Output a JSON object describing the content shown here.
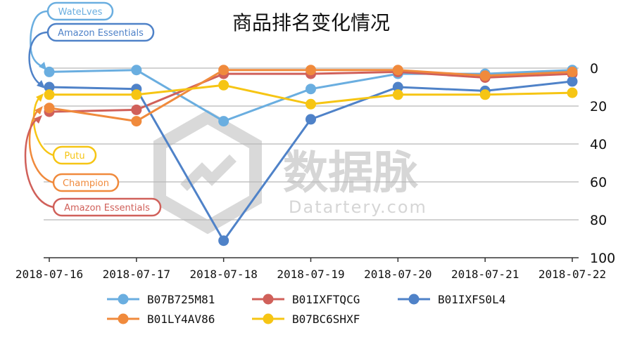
{
  "chart_data": {
    "type": "line",
    "title": "商品排名变化情况",
    "categories": [
      "2018-07-16",
      "2018-07-17",
      "2018-07-18",
      "2018-07-19",
      "2018-07-20",
      "2018-07-21",
      "2018-07-22"
    ],
    "y_axis": {
      "min": 0,
      "max": 100,
      "reversed": true,
      "position": "right",
      "ticks": [
        0,
        20,
        40,
        60,
        80,
        100
      ]
    },
    "grid": true,
    "legend_position": "bottom",
    "series": [
      {
        "name": "B07B725M81",
        "color": "#6aaee0",
        "values": [
          2,
          1,
          28,
          11,
          3,
          3,
          1
        ]
      },
      {
        "name": "B01IXFTQCG",
        "color": "#d0605a",
        "values": [
          23,
          22,
          3,
          3,
          2,
          5,
          3
        ]
      },
      {
        "name": "B01IXFS0L4",
        "color": "#4f82c8",
        "values": [
          10,
          11,
          91,
          27,
          10,
          12,
          7
        ]
      },
      {
        "name": "B01LY4AV86",
        "color": "#f08a3c",
        "values": [
          21,
          28,
          1,
          1,
          1,
          4,
          2
        ]
      },
      {
        "name": "B07BC6SHXF",
        "color": "#f6c514",
        "values": [
          14,
          14,
          9,
          19,
          14,
          14,
          13
        ]
      }
    ],
    "annotations": [
      {
        "text": "WateLves",
        "color": "#6aaee0",
        "series": "B07B725M81"
      },
      {
        "text": "Amazon Essentials",
        "color": "#4f82c8",
        "series": "B01IXFS0L4"
      },
      {
        "text": "Putu",
        "color": "#f6c514",
        "series": "B07BC6SHXF"
      },
      {
        "text": "Champion",
        "color": "#f08a3c",
        "series": "B01LY4AV86"
      },
      {
        "text": "Amazon Essentials",
        "color": "#d0605a",
        "series": "B01IXFTQCG"
      }
    ],
    "watermark": {
      "text": "数据脉",
      "subtext": "Datartery.com"
    }
  }
}
